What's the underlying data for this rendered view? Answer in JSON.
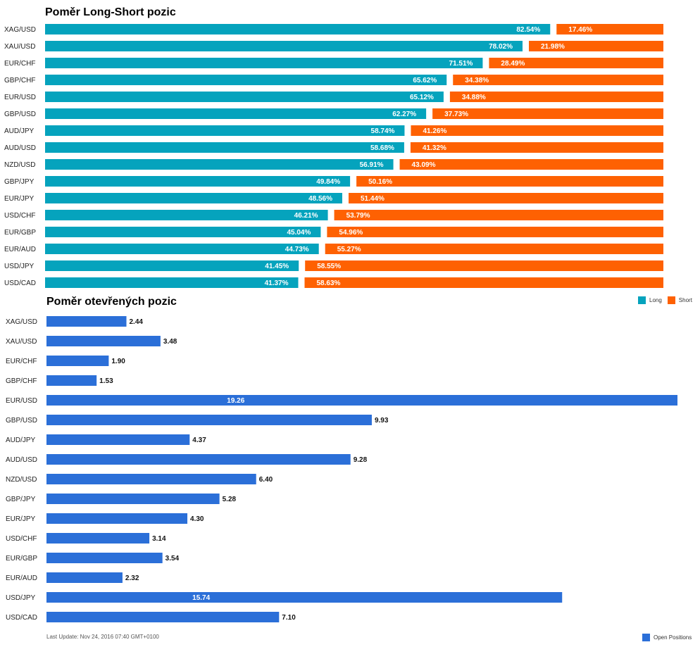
{
  "colors": {
    "long": "#05a3bd",
    "short": "#fe6102",
    "open": "#2b6fd8"
  },
  "chart_data": [
    {
      "type": "bar",
      "orientation": "horizontal",
      "stacked": true,
      "title": "Poměr Long-Short pozic",
      "categories": [
        "XAG/USD",
        "XAU/USD",
        "EUR/CHF",
        "GBP/CHF",
        "EUR/USD",
        "GBP/USD",
        "AUD/JPY",
        "AUD/USD",
        "NZD/USD",
        "GBP/JPY",
        "EUR/JPY",
        "USD/CHF",
        "EUR/GBP",
        "EUR/AUD",
        "USD/JPY",
        "USD/CAD"
      ],
      "series": [
        {
          "name": "Long",
          "values": [
            82.54,
            78.02,
            71.51,
            65.62,
            65.12,
            62.27,
            58.74,
            58.68,
            56.91,
            49.84,
            48.56,
            46.21,
            45.04,
            44.73,
            41.45,
            41.37
          ]
        },
        {
          "name": "Short",
          "values": [
            17.46,
            21.98,
            28.49,
            34.38,
            34.88,
            37.73,
            41.26,
            41.32,
            43.09,
            50.16,
            51.44,
            53.79,
            54.96,
            55.27,
            58.55,
            58.63
          ]
        }
      ],
      "value_labels": {
        "long": [
          "82.54%",
          "78.02%",
          "71.51%",
          "65.62%",
          "65.12%",
          "62.27%",
          "58.74%",
          "58.68%",
          "56.91%",
          "49.84%",
          "48.56%",
          "46.21%",
          "45.04%",
          "44.73%",
          "41.45%",
          "41.37%"
        ],
        "short": [
          "17.46%",
          "21.98%",
          "28.49%",
          "34.38%",
          "34.88%",
          "37.73%",
          "41.26%",
          "41.32%",
          "43.09%",
          "50.16%",
          "51.44%",
          "53.79%",
          "54.96%",
          "55.27%",
          "58.55%",
          "58.63%"
        ]
      },
      "xlim": [
        0,
        100
      ],
      "legend": "bottom-right"
    },
    {
      "type": "bar",
      "orientation": "horizontal",
      "title": "Poměr otevřených pozic",
      "categories": [
        "XAG/USD",
        "XAU/USD",
        "EUR/CHF",
        "GBP/CHF",
        "EUR/USD",
        "GBP/USD",
        "AUD/JPY",
        "AUD/USD",
        "NZD/USD",
        "GBP/JPY",
        "EUR/JPY",
        "USD/CHF",
        "EUR/GBP",
        "EUR/AUD",
        "USD/JPY",
        "USD/CAD"
      ],
      "series": [
        {
          "name": "Open Positions",
          "values": [
            2.44,
            3.48,
            1.9,
            1.53,
            19.26,
            9.93,
            4.37,
            9.28,
            6.4,
            5.28,
            4.3,
            3.14,
            3.54,
            2.32,
            15.74,
            7.1
          ]
        }
      ],
      "value_labels": [
        "2.44",
        "3.48",
        "1.90",
        "1.53",
        "19.26",
        "9.93",
        "4.37",
        "9.28",
        "6.40",
        "5.28",
        "4.30",
        "3.14",
        "3.54",
        "2.32",
        "15.74",
        "7.10"
      ],
      "xlim": [
        0,
        19.26
      ],
      "legend": "bottom-right"
    }
  ],
  "legend_ls": {
    "long": "Long",
    "short": "Short"
  },
  "legend_op": {
    "open": "Open Positions"
  },
  "footer": {
    "last_update": "Last Update: Nov 24, 2016 07:40 GMT+0100"
  }
}
